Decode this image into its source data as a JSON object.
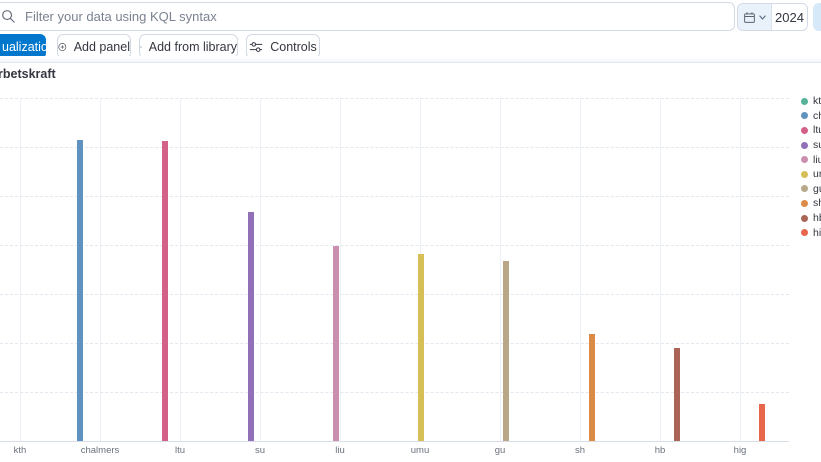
{
  "query_bar": {
    "placeholder": "Filter your data using KQL syntax"
  },
  "datepicker": {
    "value": "2024"
  },
  "toolbar": {
    "create_visualization_label": "ualization",
    "add_panel_label": "Add panel",
    "add_from_library_label": "Add from library",
    "controls_label": "Controls"
  },
  "panel": {
    "title": "rbetskraft"
  },
  "chart_data": {
    "type": "bar",
    "title": "rbetskraft",
    "xlabel": "",
    "ylabel": "",
    "value_axis": {
      "labels_visible": false,
      "horizontal_gridlines": 7,
      "note": "y-axis tick labels are cut off at the left edge of the screenshot; values expressed as percent of the gridline span (baseline to top gridline)"
    },
    "layout_note": "each series has a single bar rendered inside its own category group, producing a diagonal offset; the kth bar is cut off past the left screen edge",
    "categories": [
      "kth",
      "chalmers",
      "ltu",
      "su",
      "liu",
      "umu",
      "gu",
      "sh",
      "hb",
      "hig"
    ],
    "series": [
      {
        "name": "kth",
        "color": "#54B399",
        "value_pct": null
      },
      {
        "name": "chalmers",
        "color": "#6092C0",
        "value_pct": 87.8
      },
      {
        "name": "ltu",
        "color": "#D36086",
        "value_pct": 87.5
      },
      {
        "name": "su",
        "color": "#9170B8",
        "value_pct": 66.8
      },
      {
        "name": "liu",
        "color": "#CA8EAE",
        "value_pct": 56.9
      },
      {
        "name": "umu",
        "color": "#D6BF57",
        "value_pct": 54.5
      },
      {
        "name": "gu",
        "color": "#B9A888",
        "value_pct": 52.5
      },
      {
        "name": "sh",
        "color": "#DA8B45",
        "value_pct": 31.2
      },
      {
        "name": "hb",
        "color": "#AA6556",
        "value_pct": 27.1
      },
      {
        "name": "hig",
        "color": "#E7664C",
        "value_pct": 10.8
      }
    ],
    "legend_position": "right"
  },
  "legend": {
    "items": [
      {
        "label": "kth",
        "color": "#54B399"
      },
      {
        "label": "ch",
        "color": "#6092C0"
      },
      {
        "label": "ltu",
        "color": "#D36086"
      },
      {
        "label": "su",
        "color": "#9170B8"
      },
      {
        "label": "liu",
        "color": "#CA8EAE"
      },
      {
        "label": "um",
        "color": "#D6BF57"
      },
      {
        "label": "gu",
        "color": "#B9A888"
      },
      {
        "label": "sh",
        "color": "#DA8B45"
      },
      {
        "label": "hb",
        "color": "#AA6556"
      },
      {
        "label": "hig",
        "color": "#E7664C"
      }
    ]
  },
  "colors": {
    "primary_blue": "#0077CC",
    "border": "#D3DAE6",
    "text_dark": "#343741",
    "text_muted": "#69707D",
    "datepicker_segment_bg": "#E9F1FA",
    "update_button_bg": "#D6E9F8"
  }
}
